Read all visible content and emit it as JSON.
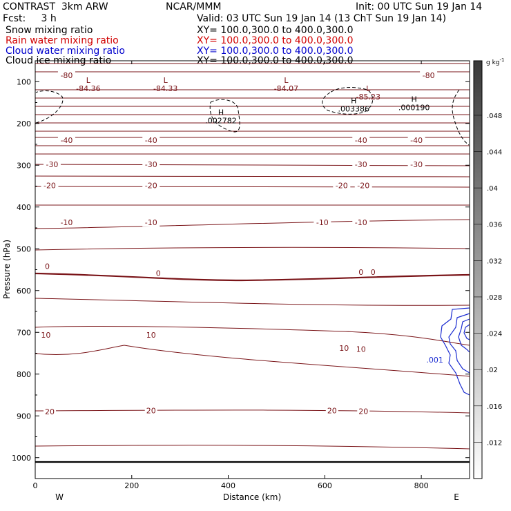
{
  "header": {
    "line1_left": "CONTRAST  3km ARW",
    "line1_mid": "NCAR/MMM",
    "line1_right": "Init: 00 UTC Sun 19 Jan 14",
    "line2_left": "Fcst:     3 h",
    "line2_right": "Valid: 03 UTC Sun 19 Jan 14 (13 ChT Sun 19 Jan 14)",
    "fields": [
      {
        "name": "Snow mixing ratio",
        "xy": "XY= 100.0,300.0 to 400.0,300.0",
        "color": "#000000"
      },
      {
        "name": "Rain water mixing ratio",
        "xy": "XY= 100.0,300.0 to 400.0,300.0",
        "color": "#d00000"
      },
      {
        "name": "Cloud water mixing ratio",
        "xy": "XY= 100.0,300.0 to 400.0,300.0",
        "color": "#0000cc"
      },
      {
        "name": "Cloud ice mixing ratio",
        "xy": "XY= 100.0,300.0 to 400.0,300.0",
        "color": "#000000"
      }
    ]
  },
  "chart_data": {
    "type": "contour",
    "xlabel": "Distance (km)",
    "ylabel": "Pressure (hPa)",
    "xlim": [
      0,
      900
    ],
    "ylim": [
      1050,
      50
    ],
    "x_ticks": [
      0,
      200,
      400,
      600,
      800
    ],
    "y_ticks": [
      100,
      200,
      300,
      400,
      500,
      600,
      700,
      800,
      900,
      1000
    ],
    "direction_labels": {
      "left": "W",
      "right": "E"
    },
    "colorbar": {
      "units": "g kg",
      "units_exponent": "-1",
      "ticks": [
        ".012",
        ".016",
        ".02",
        ".024",
        ".028",
        ".032",
        ".036",
        ".04",
        ".044",
        ".048"
      ]
    },
    "colors": {
      "temperature": "#7a1418",
      "cloud_water": "#1a2bd1",
      "cloud_ice": "#000000",
      "ground": "#000000"
    },
    "temperature_labels": [
      {
        "x": 65,
        "p": 85,
        "text": "-80"
      },
      {
        "x": 815,
        "p": 85,
        "text": "-80"
      },
      {
        "x": 65,
        "p": 240,
        "text": "-40"
      },
      {
        "x": 240,
        "p": 240,
        "text": "-40"
      },
      {
        "x": 675,
        "p": 240,
        "text": "-40"
      },
      {
        "x": 790,
        "p": 240,
        "text": "-40"
      },
      {
        "x": 35,
        "p": 298,
        "text": "-30"
      },
      {
        "x": 240,
        "p": 298,
        "text": "-30"
      },
      {
        "x": 675,
        "p": 298,
        "text": "-30"
      },
      {
        "x": 790,
        "p": 298,
        "text": "-30"
      },
      {
        "x": 30,
        "p": 348,
        "text": "-20"
      },
      {
        "x": 240,
        "p": 348,
        "text": "-20"
      },
      {
        "x": 635,
        "p": 348,
        "text": "-20"
      },
      {
        "x": 680,
        "p": 348,
        "text": "-20"
      },
      {
        "x": 65,
        "p": 437,
        "text": "-10"
      },
      {
        "x": 240,
        "p": 437,
        "text": "-10"
      },
      {
        "x": 595,
        "p": 437,
        "text": "-10"
      },
      {
        "x": 675,
        "p": 437,
        "text": "-10"
      },
      {
        "x": 25,
        "p": 542,
        "text": "0"
      },
      {
        "x": 255,
        "p": 558,
        "text": "0"
      },
      {
        "x": 675,
        "p": 556,
        "text": "0"
      },
      {
        "x": 700,
        "p": 556,
        "text": "0"
      },
      {
        "x": 22,
        "p": 706,
        "text": "10"
      },
      {
        "x": 240,
        "p": 706,
        "text": "10"
      },
      {
        "x": 640,
        "p": 738,
        "text": "10"
      },
      {
        "x": 675,
        "p": 740,
        "text": "10"
      },
      {
        "x": 30,
        "p": 890,
        "text": "20"
      },
      {
        "x": 240,
        "p": 887,
        "text": "20"
      },
      {
        "x": 615,
        "p": 887,
        "text": "20"
      },
      {
        "x": 680,
        "p": 889,
        "text": "20"
      }
    ],
    "extrema": [
      {
        "x": 110,
        "p": 103,
        "type": "L",
        "value": "-84.36"
      },
      {
        "x": 270,
        "p": 103,
        "type": "L",
        "value": "-84.33"
      },
      {
        "x": 520,
        "p": 103,
        "type": "L",
        "value": "-84.07"
      },
      {
        "x": 690,
        "p": 123,
        "type": "L",
        "value": "-85.23"
      },
      {
        "x": 385,
        "p": 180,
        "type": "H",
        "value": ".002782"
      },
      {
        "x": 660,
        "p": 152,
        "type": "H",
        "value": ".003386"
      },
      {
        "x": 785,
        "p": 148,
        "type": "H",
        "value": ".000190"
      }
    ],
    "cloud_water_labels": [
      {
        "x": 828,
        "p": 772,
        "text": ".001"
      }
    ]
  }
}
